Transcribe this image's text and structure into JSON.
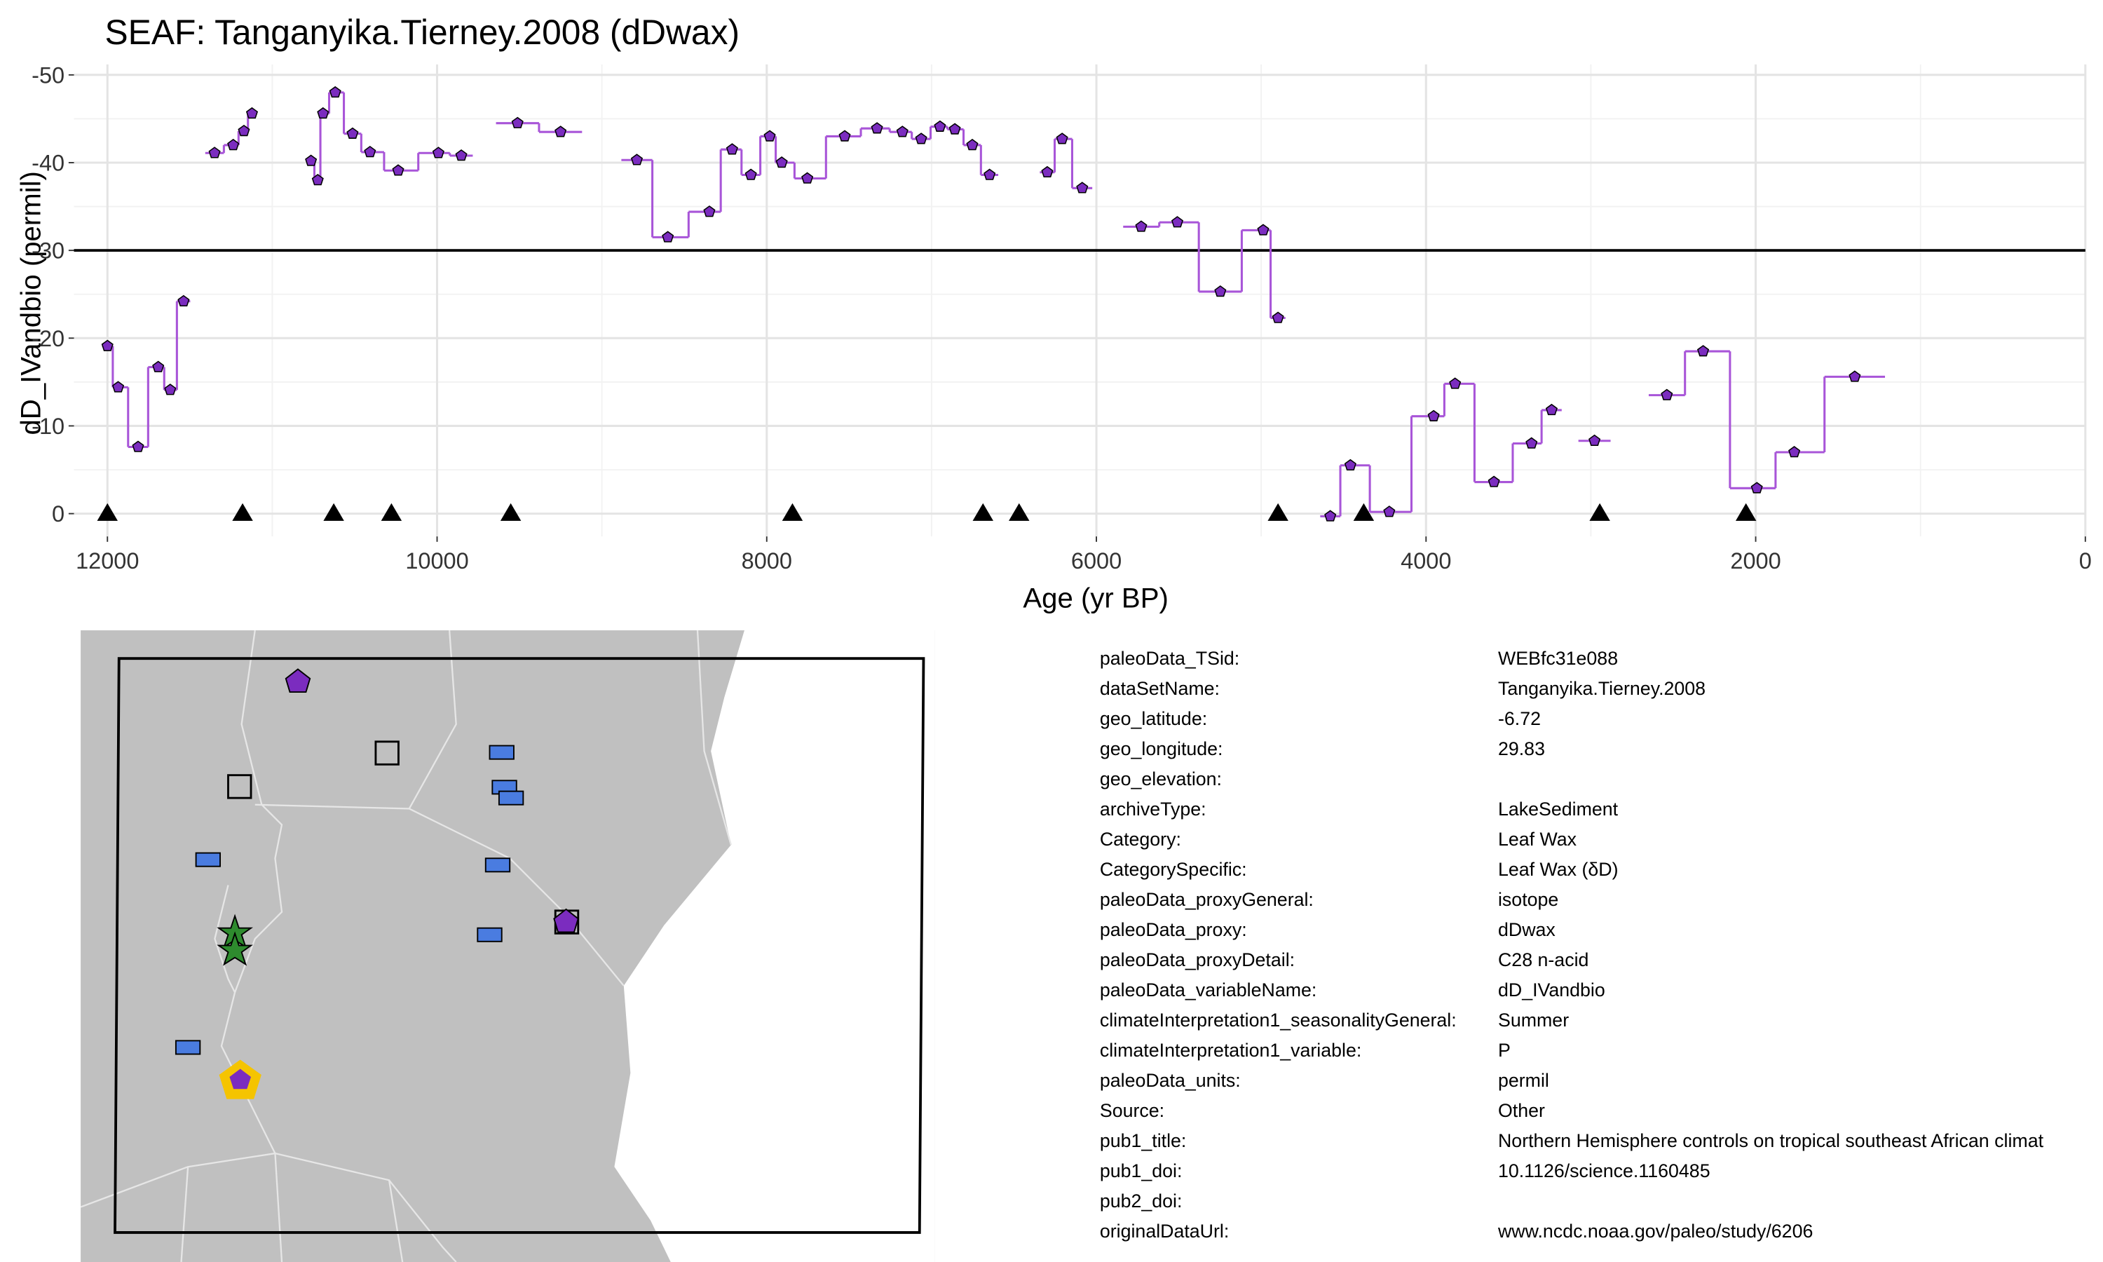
{
  "chart_data": {
    "type": "step",
    "title": "SEAF: Tanganyika.Tierney.2008 (dDwax)",
    "xlabel": "Age (yr BP)",
    "ylabel": "dD_IVandbio (permil)",
    "xlim": [
      12203,
      0
    ],
    "ylim": [
      2.6,
      -51.2
    ],
    "xticks": [
      12000,
      10000,
      8000,
      6000,
      4000,
      2000,
      0
    ],
    "yticks": [
      -50,
      -40,
      -30,
      -20,
      -10,
      0
    ],
    "xminor": [
      11000,
      9000,
      7000,
      5000,
      3000,
      1000
    ],
    "yminor": [
      -45,
      -35,
      -25,
      -15,
      -5
    ],
    "grid": true,
    "hline": -30,
    "series": [
      {
        "color": "#a855d8",
        "marker_color": "#7b2cbf",
        "marker": "pentagon",
        "x": [
          12000,
          11935,
          11814,
          11692,
          11619,
          11538,
          null,
          11350,
          11237,
          11172,
          11123,
          null,
          10765,
          10724,
          10692,
          10618,
          10513,
          10407,
          10236,
          9992,
          9853,
          null,
          9512,
          9251,
          null,
          8788,
          8600,
          8348,
          8210,
          8096,
          7982,
          7909,
          7754,
          7527,
          7331,
          7177,
          7063,
          6949,
          6859,
          6753,
          6648,
          null,
          6298,
          6208,
          6086,
          null,
          5728,
          5509,
          5248,
          4988,
          4898,
          null,
          4581,
          4459,
          4223,
          3954,
          3824,
          3588,
          3360,
          3238,
          null,
          2978,
          null,
          2539,
          2319,
          1993,
          1766,
          1399
        ],
        "values": [
          -19.1,
          -14.4,
          -7.6,
          -16.7,
          -14.1,
          -24.2,
          null,
          -41.1,
          -42.0,
          -43.6,
          -45.6,
          null,
          -40.2,
          -38.0,
          -45.6,
          -48.0,
          -43.3,
          -41.2,
          -39.1,
          -41.1,
          -40.8,
          null,
          -44.5,
          -43.5,
          null,
          -40.3,
          -31.5,
          -34.4,
          -41.5,
          -38.6,
          -43.0,
          -40.0,
          -38.2,
          -43.0,
          -43.9,
          -43.5,
          -42.7,
          -44.1,
          -43.8,
          -42.0,
          -38.6,
          null,
          -38.9,
          -42.7,
          -37.1,
          null,
          -32.7,
          -33.2,
          -25.3,
          -32.3,
          -22.3,
          null,
          0.3,
          -5.5,
          -0.2,
          -11.1,
          -14.8,
          -3.6,
          -8.0,
          -11.8,
          null,
          -8.3,
          null,
          -13.5,
          -18.5,
          -2.9,
          -7.0,
          -15.6
        ]
      },
      {
        "color": "#000000",
        "marker": "triangle",
        "x": [
          12000,
          11180,
          10627,
          10277,
          9553,
          7844,
          6688,
          6469,
          4898,
          4378,
          2946,
          2059
        ],
        "values": [
          0,
          0,
          0,
          0,
          0,
          0,
          0,
          0,
          0,
          0,
          0,
          0
        ]
      }
    ]
  },
  "metadata": {
    "rows": [
      [
        "paleoData_TSid:",
        "WEBfc31e088"
      ],
      [
        "dataSetName:",
        "Tanganyika.Tierney.2008"
      ],
      [
        "geo_latitude:",
        "-6.72"
      ],
      [
        "geo_longitude:",
        "29.83"
      ],
      [
        "geo_elevation:"
      ],
      [
        "archiveType:",
        "LakeSediment"
      ],
      [
        "Category:",
        "Leaf Wax"
      ],
      [
        "CategorySpecific:",
        "Leaf Wax (δD)"
      ],
      [
        "paleoData_proxyGeneral:",
        "isotope"
      ],
      [
        "paleoData_proxy:",
        "dDwax"
      ],
      [
        "paleoData_proxyDetail:",
        "C28 n-acid"
      ],
      [
        "paleoData_variableName:",
        "dD_IVandbio"
      ],
      [
        "climateInterpretation1_seasonalityGeneral:",
        "Summer"
      ],
      [
        "climateInterpretation1_variable:",
        "P"
      ],
      [
        "paleoData_units:",
        "permil"
      ],
      [
        "Source:",
        "Other"
      ],
      [
        "pub1_title:",
        "Northern Hemisphere controls on tropical southeast African climat"
      ],
      [
        "pub1_doi:",
        "10.1126/science.1160485"
      ],
      [
        "pub2_doi:"
      ],
      [
        "originalDataUrl:",
        "www.ncdc.noaa.gov/paleo/study/6206"
      ]
    ]
  }
}
